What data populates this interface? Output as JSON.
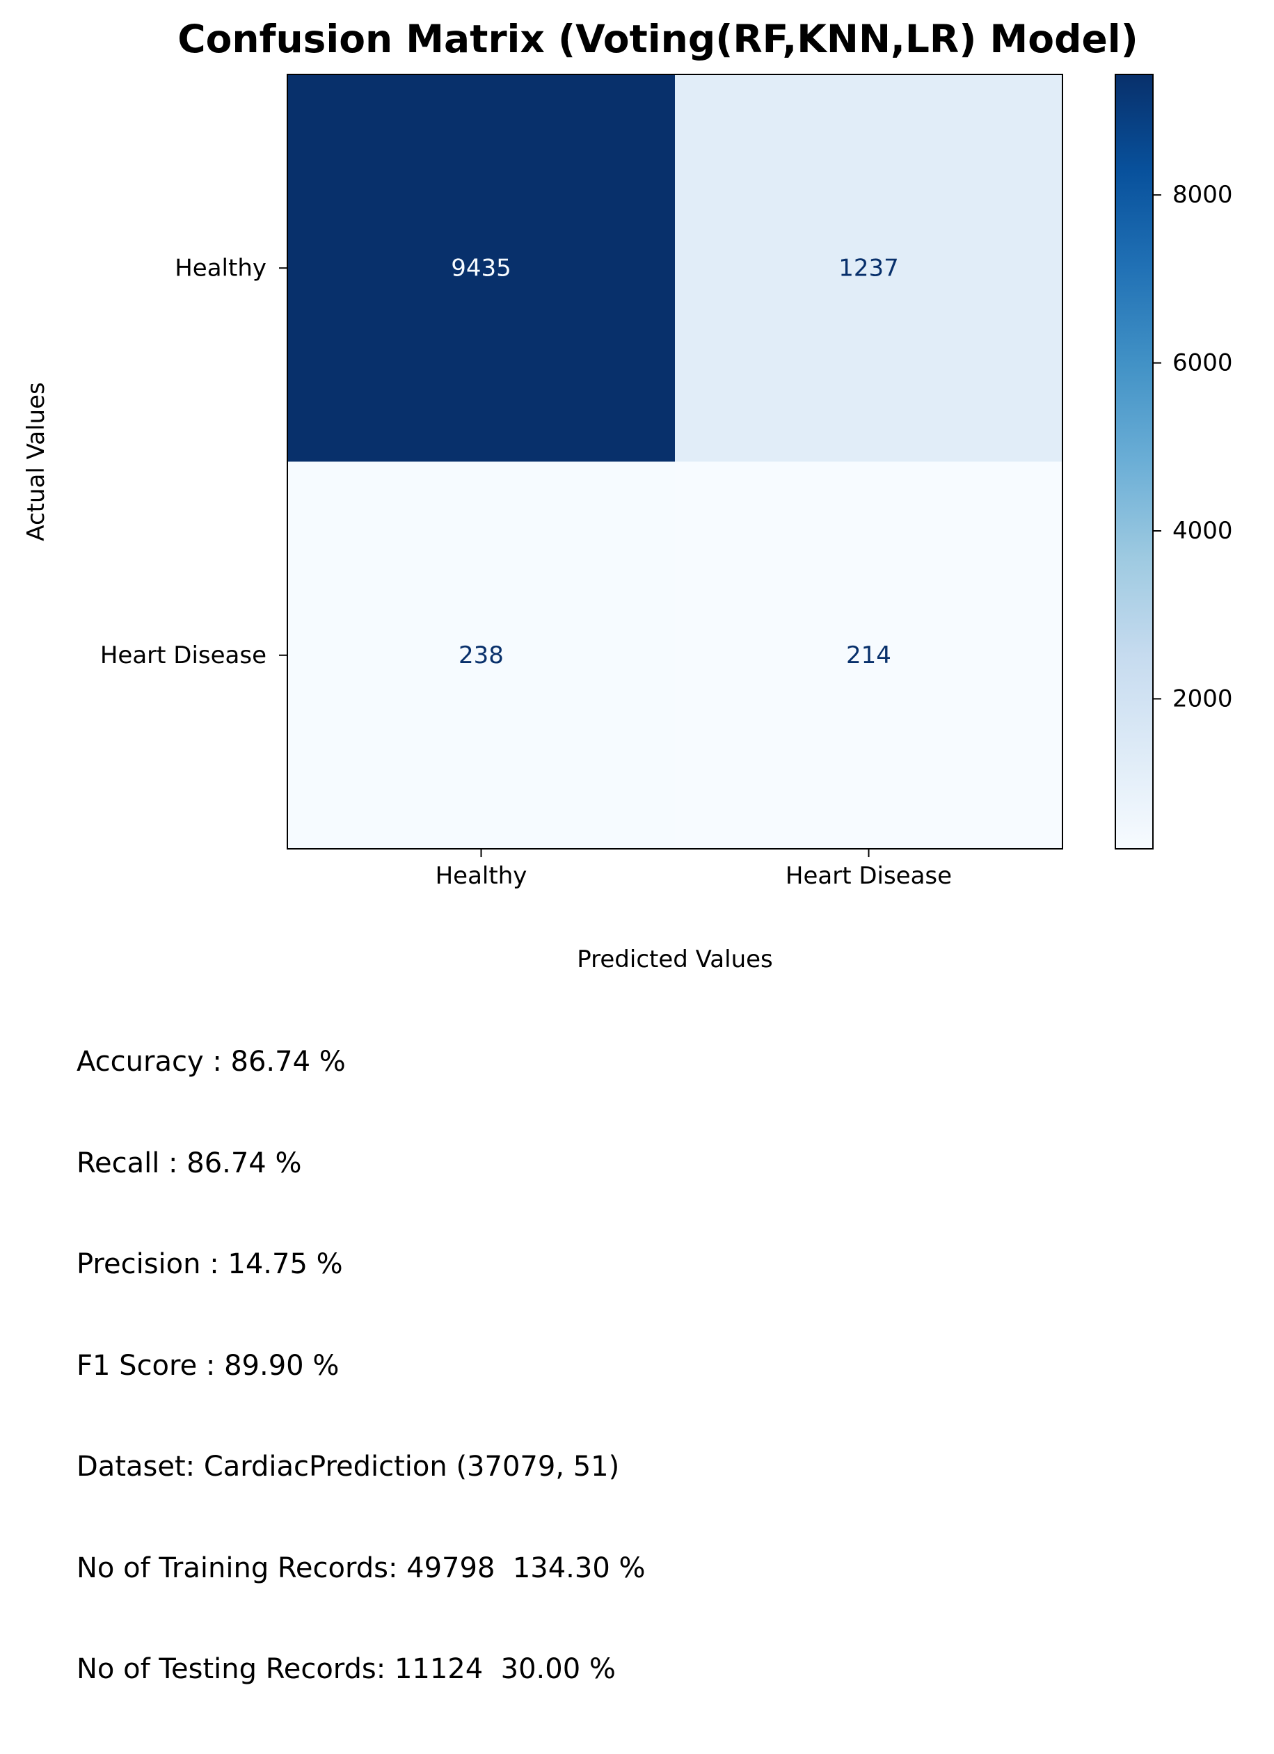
{
  "chart_data": {
    "type": "heatmap",
    "title": "Confusion Matrix (Voting(RF,KNN,LR) Model)",
    "xlabel": "Predicted Values",
    "ylabel": "Actual Values",
    "x_categories": [
      "Healthy",
      "Heart Disease"
    ],
    "y_categories": [
      "Healthy",
      "Heart Disease"
    ],
    "values": [
      [
        9435,
        1237
      ],
      [
        238,
        214
      ]
    ],
    "colormap": "Blues",
    "colorbar": {
      "ticks": [
        2000,
        4000,
        6000,
        8000
      ],
      "range": [
        214,
        9435
      ]
    }
  },
  "metrics": [
    "Accuracy : 86.74 %",
    "Recall : 86.74 %",
    "Precision : 14.75 %",
    "F1 Score : 89.90 %",
    "Dataset: CardiacPrediction (37079, 51)",
    "No of Training Records: 49798  134.30 %",
    "No of Testing Records: 11124  30.00 %"
  ],
  "colors": {
    "blues_light": "#f7fbff",
    "blues_dark": "#08306b",
    "text_on_dark": "#f7fbff",
    "text_on_light": "#08306b"
  }
}
